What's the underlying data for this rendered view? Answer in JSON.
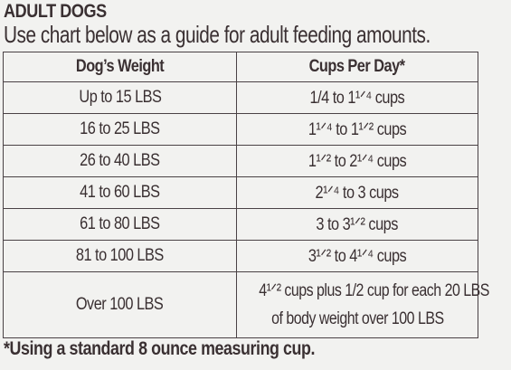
{
  "heading": "ADULT DOGS",
  "subheading": "Use chart below as a guide for adult feeding amounts.",
  "table": {
    "headers": [
      "Dog’s Weight",
      "Cups Per Day*"
    ],
    "rows": [
      {
        "weight": "Up to 15 LBS",
        "cups": "1/4 to 1¹ᐟ⁴ cups"
      },
      {
        "weight": "16 to 25 LBS",
        "cups": "1¹ᐟ⁴ to 1¹ᐟ² cups"
      },
      {
        "weight": "26 to 40 LBS",
        "cups": "1¹ᐟ² to 2¹ᐟ⁴ cups"
      },
      {
        "weight": "41 to 60 LBS",
        "cups": "2¹ᐟ⁴ to 3 cups"
      },
      {
        "weight": "61 to 80 LBS",
        "cups": "3 to 3¹ᐟ² cups"
      },
      {
        "weight": "81 to 100 LBS",
        "cups": "3¹ᐟ² to 4¹ᐟ⁴ cups"
      },
      {
        "weight": "Over 100 LBS",
        "cups_line1": "4¹ᐟ² cups plus 1/2 cup for each 20 LBS",
        "cups_line2": "of body weight over 100 LBS"
      }
    ]
  },
  "footnote": "*Using a standard 8 ounce measuring cup."
}
